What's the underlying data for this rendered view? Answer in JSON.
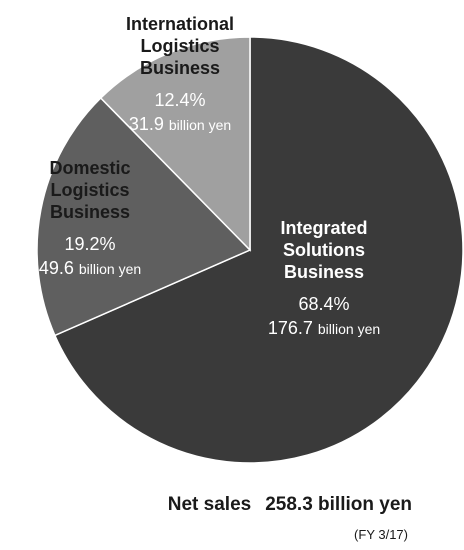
{
  "chart_data": {
    "type": "pie",
    "unit": "billion yen",
    "slices": [
      {
        "name": [
          "Integrated",
          "Solutions",
          "Business"
        ],
        "percent": "68.4%",
        "value": 176.7,
        "value_text": "176.7",
        "color": "#3a3a3a",
        "label_color": "#ffffff"
      },
      {
        "name": [
          "Domestic",
          "Logistics",
          "Business"
        ],
        "percent": "19.2%",
        "value": 49.6,
        "value_text": "49.6",
        "color": "#5f5f5f",
        "label_color": "#1a1a1a"
      },
      {
        "name": [
          "International",
          "Logistics",
          "Business"
        ],
        "percent": "12.4%",
        "value": 31.9,
        "value_text": "31.9",
        "color": "#a0a0a0",
        "label_color": "#1a1a1a"
      }
    ]
  },
  "footer": {
    "net_sales_label": "Net sales",
    "net_sales_value": "258.3 billion yen",
    "period": "(FY 3/17)"
  }
}
